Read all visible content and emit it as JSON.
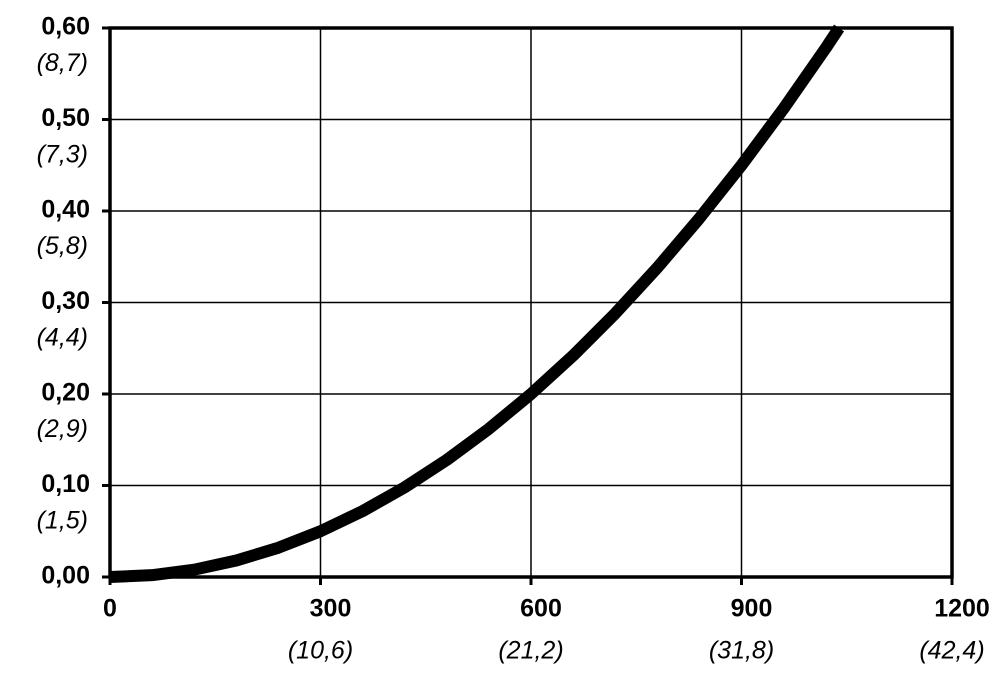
{
  "chart_data": {
    "type": "line",
    "x": [
      0,
      60,
      120,
      180,
      240,
      300,
      360,
      420,
      480,
      540,
      600,
      660,
      720,
      780,
      840,
      900,
      960,
      1020,
      1039
    ],
    "series": [
      {
        "color": "#000000",
        "values": [
          0,
          0.002,
          0.008,
          0.018,
          0.032,
          0.05,
          0.072,
          0.098,
          0.128,
          0.162,
          0.2,
          0.242,
          0.288,
          0.338,
          0.392,
          0.45,
          0.512,
          0.578,
          0.6
        ]
      }
    ],
    "xlim": [
      0,
      1200
    ],
    "xticks": [
      0,
      300,
      600,
      900,
      1200
    ],
    "xticks_secondary": [
      "(10,6)",
      "(21,2)",
      "(31,8)",
      "(42,4)"
    ],
    "ylim": [
      0,
      0.6
    ],
    "yticks": [
      {
        "value": 0,
        "label": "0,00"
      },
      {
        "value": 0.1,
        "label": "0,10"
      },
      {
        "value": 0.2,
        "label": "0,20"
      },
      {
        "value": 0.3,
        "label": "0,30"
      },
      {
        "value": 0.4,
        "label": "0,40"
      },
      {
        "value": 0.5,
        "label": "0,50"
      },
      {
        "value": 0.6,
        "label": "0,60"
      }
    ],
    "yticks_secondary": [
      "(1,5)",
      "(2,9)",
      "(4,4)",
      "(5,8)",
      "(7,3)",
      "(8,7)"
    ],
    "grid": true
  }
}
